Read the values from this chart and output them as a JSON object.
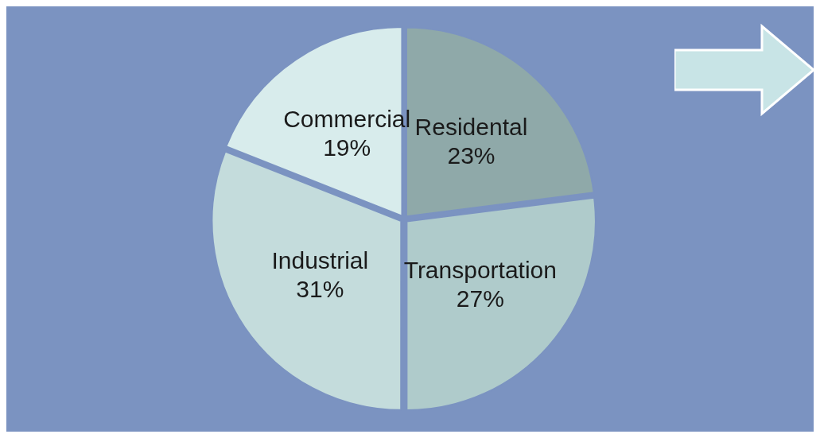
{
  "chart_data": {
    "type": "pie",
    "categories": [
      "Residental",
      "Transportation",
      "Industrial",
      "Commercial"
    ],
    "values": [
      23,
      27,
      31,
      19
    ],
    "colors": [
      "#8fa9a9",
      "#afcbcb",
      "#c4dcdc",
      "#d8ecec"
    ],
    "value_labels": [
      "23%",
      "27%",
      "31%",
      "19%"
    ],
    "legend": false
  }
}
